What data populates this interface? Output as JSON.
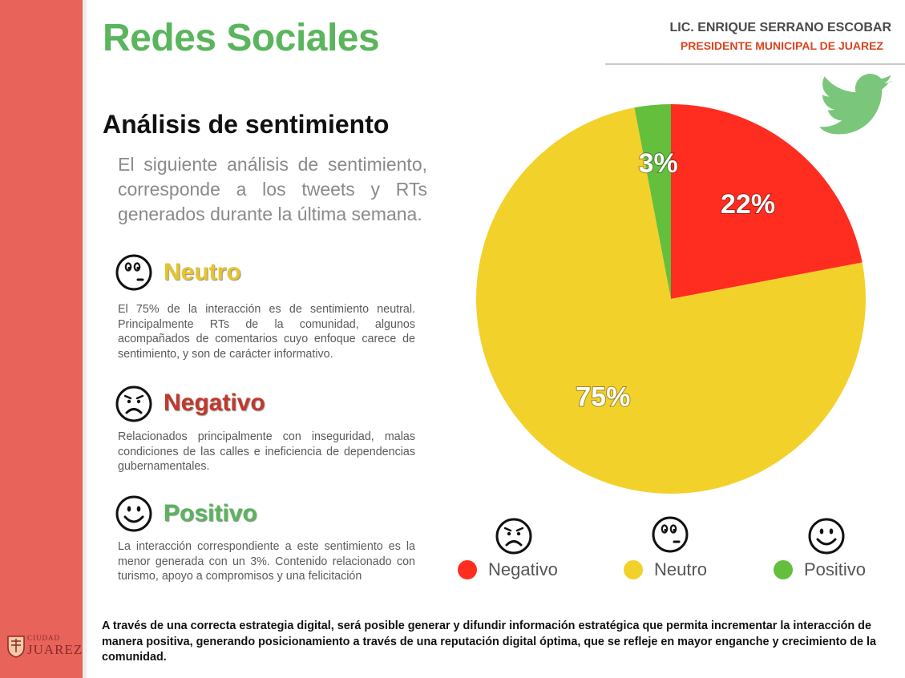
{
  "header": {
    "title": "Redes Sociales",
    "name": "LIC. ENRIQUE SERRANO ESCOBAR",
    "role": "PRESIDENTE MUNICIPAL DE JUAREZ"
  },
  "logo": {
    "city": "CIUDAD",
    "name": "JUAREZ"
  },
  "section": {
    "title": "Análisis de sentimiento",
    "intro": "El siguiente análisis de sentimiento, corresponde a los tweets y RTs generados durante la última semana."
  },
  "categories": {
    "neutral": {
      "title": "Neutro",
      "text": "El 75% de la interacción es de sentimiento neutral. Principalmente RTs de la comunidad, algunos acompañados de comentarios cuyo enfoque carece de sentimiento, y son de carácter informativo."
    },
    "negative": {
      "title": "Negativo",
      "text": "Relacionados principalmente con inseguridad, malas condiciones de las calles e ineficiencia de dependencias gubernamentales."
    },
    "positive": {
      "title": "Positivo",
      "text": "La interacción correspondiente a este sentimiento es la menor generada con un 3%. Contenido relacionado con turismo, apoyo a compromisos y una felicitación"
    }
  },
  "chart_data": {
    "type": "pie",
    "title": "",
    "start_angle_deg": 0,
    "direction": "clockwise",
    "slices": [
      {
        "label": "Negativo",
        "value": 22,
        "display": "22%",
        "color": "#ff2d20"
      },
      {
        "label": "Neutro",
        "value": 75,
        "display": "75%",
        "color": "#f3d12b"
      },
      {
        "label": "Positivo",
        "value": 3,
        "display": "3%",
        "color": "#63bf3c"
      }
    ],
    "legend": {
      "placement": "bottom",
      "items": [
        {
          "label": "Negativo",
          "color": "#ff2d20",
          "icon": "sad-face-icon"
        },
        {
          "label": "Neutro",
          "color": "#f3d12b",
          "icon": "neutral-face-icon"
        },
        {
          "label": "Positivo",
          "color": "#63bf3c",
          "icon": "happy-face-icon"
        }
      ]
    }
  },
  "footer": {
    "text": "A través de una correcta estrategia digital, será posible generar y difundir información estratégica que permita incrementar la interacción de manera positiva, generando posicionamiento a través de una reputación digital óptima, que se refleje en mayor enganche y crecimiento de la comunidad."
  },
  "icons": [
    "twitter-bird-icon",
    "neutral-face-icon",
    "sad-face-icon",
    "happy-face-icon",
    "city-seal-icon"
  ]
}
